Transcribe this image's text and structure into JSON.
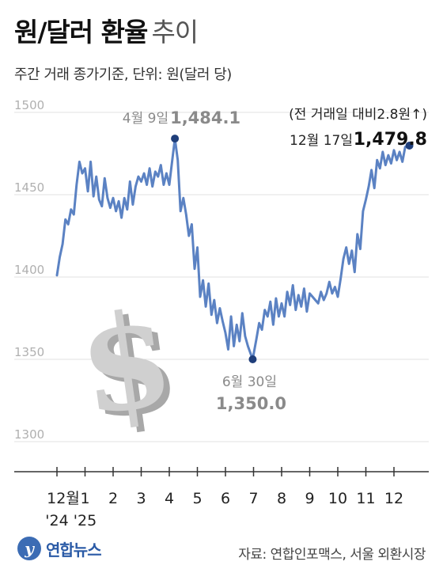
{
  "title": {
    "main": "원/달러 환율",
    "suffix": "추이"
  },
  "subtitle": "주간 거래 종가기준, 단위: 원(달러 당)",
  "source": "자료: 연합인포맥스, 서울 외환시장",
  "logo_text": "연합뉴스",
  "colors": {
    "line": "#5b82c3",
    "marker": "#1f3e7a",
    "grid": "#e2e2e2",
    "axis": "#333333",
    "ytick": "#b0b0b0",
    "annotation_muted": "#8a8a8a",
    "dollar_icon": "#cfcfcf"
  },
  "chart_data": {
    "type": "line",
    "title": "원/달러 환율 추이",
    "ylabel": "원(달러 당)",
    "ylim": [
      1300,
      1500
    ],
    "yticks": [
      1500,
      1450,
      1400,
      1350,
      1300
    ],
    "ytick_labels": [
      "1500",
      "1450",
      "1400",
      "1350",
      "1300"
    ],
    "grid": true,
    "x_labels": [
      {
        "m": 0,
        "label": "12월",
        "sub": "'24"
      },
      {
        "m": 1,
        "label": "1",
        "sub": "'25"
      },
      {
        "m": 2,
        "label": "2",
        "sub": ""
      },
      {
        "m": 3,
        "label": "3",
        "sub": ""
      },
      {
        "m": 4,
        "label": "4",
        "sub": ""
      },
      {
        "m": 5,
        "label": "5",
        "sub": ""
      },
      {
        "m": 6,
        "label": "6",
        "sub": ""
      },
      {
        "m": 7,
        "label": "7",
        "sub": ""
      },
      {
        "m": 8,
        "label": "8",
        "sub": ""
      },
      {
        "m": 9,
        "label": "9",
        "sub": ""
      },
      {
        "m": 10,
        "label": "10",
        "sub": ""
      },
      {
        "m": 11,
        "label": "11",
        "sub": ""
      },
      {
        "m": 12,
        "label": "12",
        "sub": ""
      }
    ],
    "series": [
      {
        "x": [
          0,
          0.1,
          0.2,
          0.3,
          0.4,
          0.5,
          0.6,
          0.7,
          0.8,
          0.9,
          1.0,
          1.1,
          1.2,
          1.3,
          1.4,
          1.5,
          1.6,
          1.7,
          1.8,
          1.9,
          2.0,
          2.1,
          2.2,
          2.3,
          2.4,
          2.5,
          2.6,
          2.7,
          2.8,
          2.9,
          3.0,
          3.1,
          3.2,
          3.3,
          3.4,
          3.5,
          3.6,
          3.7,
          3.8,
          3.9,
          4.0,
          4.1,
          4.2,
          4.3,
          4.4,
          4.5,
          4.6,
          4.7,
          4.8,
          4.9,
          5.0,
          5.1,
          5.2,
          5.3,
          5.4,
          5.5,
          5.6,
          5.7,
          5.8,
          5.9,
          6.0,
          6.1,
          6.2,
          6.3,
          6.4,
          6.5,
          6.6,
          6.7,
          6.8,
          6.97,
          7.1,
          7.2,
          7.3,
          7.4,
          7.5,
          7.6,
          7.7,
          7.8,
          7.9,
          8.0,
          8.1,
          8.2,
          8.3,
          8.4,
          8.5,
          8.6,
          8.7,
          8.8,
          8.9,
          9.0,
          9.1,
          9.2,
          9.3,
          9.4,
          9.5,
          9.6,
          9.7,
          9.8,
          9.9,
          10.0,
          10.1,
          10.2,
          10.3,
          10.4,
          10.5,
          10.6,
          10.7,
          10.8,
          10.9,
          11.0,
          11.1,
          11.2,
          11.3,
          11.4,
          11.5,
          11.6,
          11.7,
          11.8,
          11.9,
          12.0,
          12.1,
          12.2,
          12.3,
          12.4,
          12.55
        ],
        "values": [
          1401,
          1412,
          1420,
          1435,
          1432,
          1441,
          1438,
          1456,
          1470,
          1463,
          1466,
          1452,
          1470,
          1449,
          1461,
          1447,
          1443,
          1460,
          1448,
          1442,
          1448,
          1440,
          1446,
          1436,
          1448,
          1441,
          1458,
          1444,
          1455,
          1461,
          1458,
          1463,
          1456,
          1466,
          1455,
          1464,
          1461,
          1468,
          1456,
          1463,
          1456,
          1470,
          1484.1,
          1471,
          1440,
          1448,
          1438,
          1425,
          1432,
          1405,
          1418,
          1388,
          1398,
          1382,
          1396,
          1377,
          1386,
          1372,
          1381,
          1373,
          1366,
          1356,
          1376,
          1358,
          1371,
          1361,
          1378,
          1364,
          1358,
          1350.0,
          1362,
          1372,
          1368,
          1380,
          1376,
          1385,
          1371,
          1387,
          1376,
          1384,
          1376,
          1391,
          1383,
          1395,
          1380,
          1389,
          1382,
          1393,
          1379,
          1390,
          1388,
          1386,
          1384,
          1391,
          1386,
          1390,
          1397,
          1390,
          1394,
          1388,
          1399,
          1411,
          1418,
          1408,
          1416,
          1403,
          1426,
          1417,
          1440,
          1447,
          1455,
          1465,
          1454,
          1471,
          1466,
          1476,
          1468,
          1474,
          1469,
          1477,
          1471,
          1476,
          1470,
          1479,
          1479.8
        ]
      }
    ],
    "annotations": [
      {
        "x": 4.2,
        "y": 1484.1,
        "date": "4월 9일",
        "value": "1,484.1"
      },
      {
        "x": 6.97,
        "y": 1350.0,
        "date": "6월 30일",
        "value": "1,350.0"
      },
      {
        "x": 12.55,
        "y": 1479.8,
        "date": "12월 17일",
        "value": "1,479.8",
        "note": "(전 거래일 대비2.8원↑)"
      }
    ]
  }
}
